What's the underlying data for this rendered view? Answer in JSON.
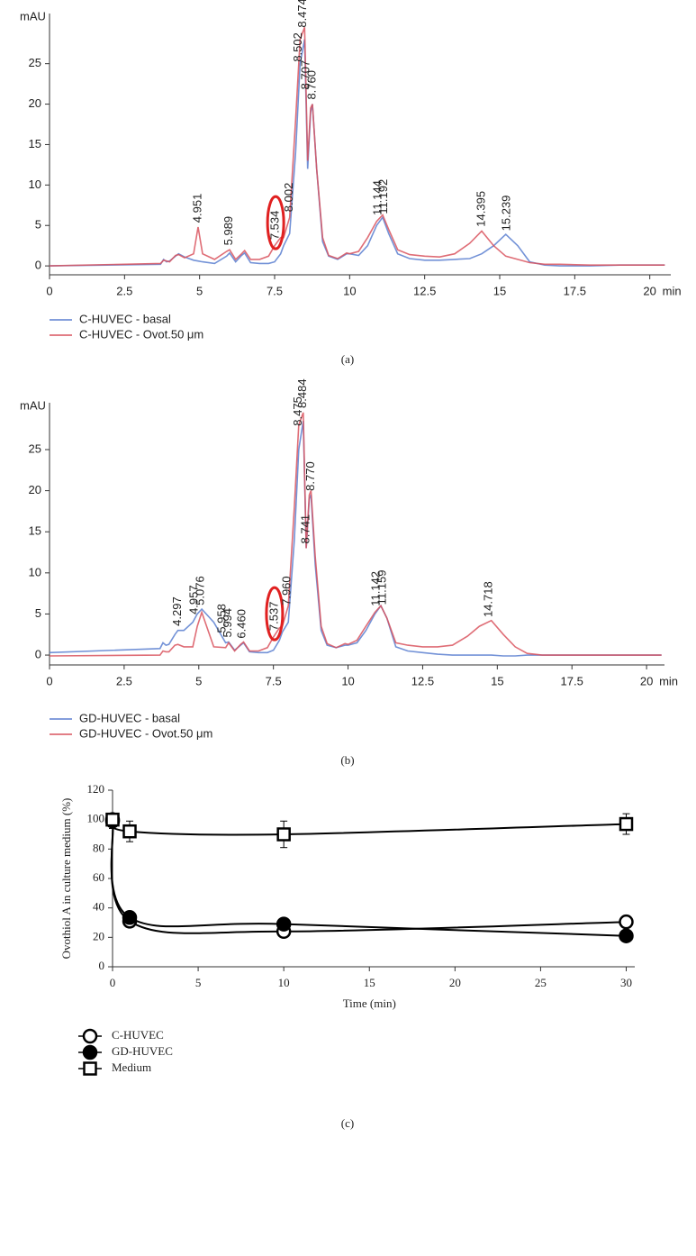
{
  "chart_data": [
    {
      "type": "chromatogram",
      "caption": "(a)",
      "y_label": "mAU",
      "x_label": "min",
      "x": [
        0,
        3.7,
        3.8,
        3.9,
        4.0,
        4.2,
        4.3,
        4.5,
        4.8,
        4.95,
        5.1,
        5.5,
        5.9,
        6.0,
        6.2,
        6.4,
        6.5,
        6.7,
        7.0,
        7.3,
        7.5,
        7.7,
        7.8,
        8.0,
        8.2,
        8.35,
        8.5,
        8.6,
        8.7,
        8.76,
        8.9,
        9.1,
        9.3,
        9.6,
        9.9,
        10.0,
        10.3,
        10.6,
        10.9,
        11.1,
        11.3,
        11.6,
        12,
        12.5,
        13,
        13.5,
        14,
        14.4,
        14.8,
        15.2,
        15.6,
        16,
        16.5,
        17,
        18,
        19,
        20.5
      ],
      "series": [
        {
          "name": "C-HUVEC - basal",
          "color": "#5b7fd0",
          "values": [
            0,
            0.2,
            0.8,
            0.5,
            0.6,
            1.2,
            1.5,
            1.1,
            0.7,
            0.6,
            0.5,
            0.3,
            1.2,
            1.6,
            0.5,
            1.3,
            1.6,
            0.4,
            0.3,
            0.3,
            0.5,
            1.5,
            2.5,
            4,
            14,
            25,
            28,
            12,
            19,
            20,
            12,
            3,
            1.2,
            0.8,
            1.5,
            1.5,
            1.3,
            2.5,
            5,
            6,
            4,
            1.5,
            0.9,
            0.7,
            0.7,
            0.8,
            0.9,
            1.5,
            2.5,
            3.9,
            2.5,
            0.5,
            0.1,
            0,
            0,
            0.1,
            0.1
          ]
        },
        {
          "name": "C-HUVEC - Ovot.50 μm",
          "color": "#d9545e",
          "values": [
            0,
            0.3,
            0.7,
            0.6,
            0.5,
            1.3,
            1.4,
            1.0,
            1.5,
            4.8,
            1.5,
            0.8,
            1.8,
            2.0,
            0.8,
            1.5,
            1.9,
            0.8,
            0.8,
            1.2,
            2.5,
            3.5,
            3.5,
            6,
            18,
            28,
            29.5,
            13,
            19.5,
            20,
            12,
            3.5,
            1.3,
            0.9,
            1.6,
            1.5,
            1.8,
            3.5,
            5.5,
            6.3,
            4.5,
            2,
            1.4,
            1.2,
            1.1,
            1.5,
            2.8,
            4.3,
            2.5,
            1.2,
            0.8,
            0.4,
            0.2,
            0.2,
            0.1,
            0.1,
            0.1
          ]
        }
      ],
      "peak_labels": [
        {
          "value": 4.951,
          "label": "4.951"
        },
        {
          "value": 5.989,
          "label": "5.989"
        },
        {
          "value": 7.534,
          "label": "7.534",
          "highlight": true
        },
        {
          "value": 8.002,
          "label": "8.002"
        },
        {
          "value": 8.3,
          "label": "8.502"
        },
        {
          "value": 8.44,
          "label": "8.474"
        },
        {
          "value": 8.55,
          "label": "8.707"
        },
        {
          "value": 8.76,
          "label": "8.760"
        },
        {
          "value": 10.95,
          "label": "11.144"
        },
        {
          "value": 11.15,
          "label": "11.192"
        },
        {
          "value": 14.395,
          "label": "14.395"
        },
        {
          "value": 15.239,
          "label": "15.239"
        }
      ],
      "xlim": [
        0,
        20.7
      ],
      "ylim": [
        -1.1,
        31.2
      ],
      "xticks": [
        0,
        2.5,
        5,
        7.5,
        10,
        12.5,
        15,
        17.5,
        20
      ],
      "yticks": [
        0,
        5,
        10,
        15,
        20,
        25
      ]
    },
    {
      "type": "chromatogram",
      "caption": "(b)",
      "y_label": "mAU",
      "x_label": "min",
      "x": [
        0,
        3.7,
        3.8,
        3.9,
        4.0,
        4.2,
        4.3,
        4.5,
        4.8,
        4.95,
        5.1,
        5.5,
        5.9,
        6.0,
        6.2,
        6.4,
        6.5,
        6.7,
        7.0,
        7.3,
        7.5,
        7.7,
        7.8,
        8.0,
        8.2,
        8.35,
        8.5,
        8.6,
        8.7,
        8.76,
        8.9,
        9.1,
        9.3,
        9.6,
        9.9,
        10.0,
        10.3,
        10.6,
        10.9,
        11.1,
        11.3,
        11.6,
        12,
        12.5,
        13,
        13.5,
        14,
        14.4,
        14.8,
        15.2,
        15.6,
        16,
        16.5,
        17,
        18,
        19,
        20.5
      ],
      "series": [
        {
          "name": "GD-HUVEC - basal",
          "color": "#5b7fd0",
          "values": [
            0.3,
            0.8,
            1.5,
            1.2,
            1.3,
            2.5,
            3,
            3,
            4,
            5,
            5.6,
            4,
            1.5,
            1.6,
            0.6,
            1.2,
            1.5,
            0.4,
            0.3,
            0.3,
            0.6,
            1.8,
            2.8,
            4,
            14,
            25,
            28.5,
            13,
            19,
            19.5,
            11,
            3,
            1.2,
            0.9,
            1.2,
            1.2,
            1.5,
            3,
            5,
            6,
            4.5,
            1,
            0.5,
            0.3,
            0.1,
            0,
            0,
            0,
            0,
            -0.1,
            -0.1,
            0,
            0,
            0,
            0,
            0,
            0
          ]
        },
        {
          "name": "GD-HUVEC - Ovot.50 μm",
          "color": "#d9545e",
          "values": [
            -0.1,
            0,
            0.5,
            0.4,
            0.4,
            1.2,
            1.3,
            1.0,
            1.0,
            3.5,
            5.2,
            1,
            0.9,
            1.5,
            0.5,
            1.3,
            1.6,
            0.5,
            0.5,
            0.9,
            2.2,
            3.3,
            3.5,
            6,
            18,
            28,
            29.5,
            13,
            19.5,
            20,
            12,
            3.5,
            1.4,
            0.9,
            1.4,
            1.3,
            1.8,
            3.5,
            5.2,
            6,
            4.5,
            1.5,
            1.2,
            1,
            1,
            1.2,
            2.3,
            3.5,
            4.2,
            2.5,
            1,
            0.2,
            0,
            0,
            0,
            0,
            0
          ]
        }
      ],
      "peak_labels": [
        {
          "value": 4.297,
          "label": "4.297"
        },
        {
          "value": 4.86,
          "label": "4.957"
        },
        {
          "value": 5.076,
          "label": "5.076"
        },
        {
          "value": 5.8,
          "label": "5.958"
        },
        {
          "value": 5.994,
          "label": "5.994"
        },
        {
          "value": 6.46,
          "label": "6.460"
        },
        {
          "value": 7.537,
          "label": "7.537",
          "highlight": true
        },
        {
          "value": 7.96,
          "label": "7.960"
        },
        {
          "value": 8.34,
          "label": "8.475"
        },
        {
          "value": 8.5,
          "label": "8.484"
        },
        {
          "value": 8.6,
          "label": "8.741"
        },
        {
          "value": 8.77,
          "label": "8.770"
        },
        {
          "value": 10.95,
          "label": "11.142"
        },
        {
          "value": 11.159,
          "label": "11.159"
        },
        {
          "value": 14.718,
          "label": "14.718"
        }
      ],
      "xlim": [
        0,
        20.6
      ],
      "ylim": [
        -1.2,
        30.7
      ],
      "xticks": [
        0,
        2.5,
        5,
        7.5,
        10,
        12.5,
        15,
        17.5,
        20
      ],
      "yticks": [
        0,
        5,
        10,
        15,
        20,
        25
      ]
    },
    {
      "type": "line",
      "caption": "(c)",
      "y_label": "Ovothiol A in culture medium (%)",
      "x_label": "Time (min)",
      "x": [
        0,
        1,
        10,
        30
      ],
      "series": [
        {
          "name": "C-HUVEC",
          "color": "#000000",
          "marker": "open-circle",
          "values": [
            99,
            31,
            24,
            30.5
          ],
          "errors": [
            5,
            null,
            null,
            null
          ]
        },
        {
          "name": "GD-HUVEC",
          "color": "#000000",
          "marker": "filled-circle",
          "values": [
            100,
            33.5,
            29,
            21
          ],
          "errors": [
            null,
            null,
            null,
            null
          ]
        },
        {
          "name": "Medium",
          "color": "#000000",
          "marker": "open-square",
          "values": [
            100,
            92,
            90,
            97
          ],
          "errors": [
            4,
            7,
            9,
            7
          ]
        }
      ],
      "xlim": [
        0,
        30.5
      ],
      "ylim": [
        0,
        120
      ],
      "xticks": [
        0,
        5,
        10,
        15,
        20,
        25,
        30
      ],
      "yticks": [
        0,
        20,
        40,
        60,
        80,
        100,
        120
      ]
    }
  ]
}
